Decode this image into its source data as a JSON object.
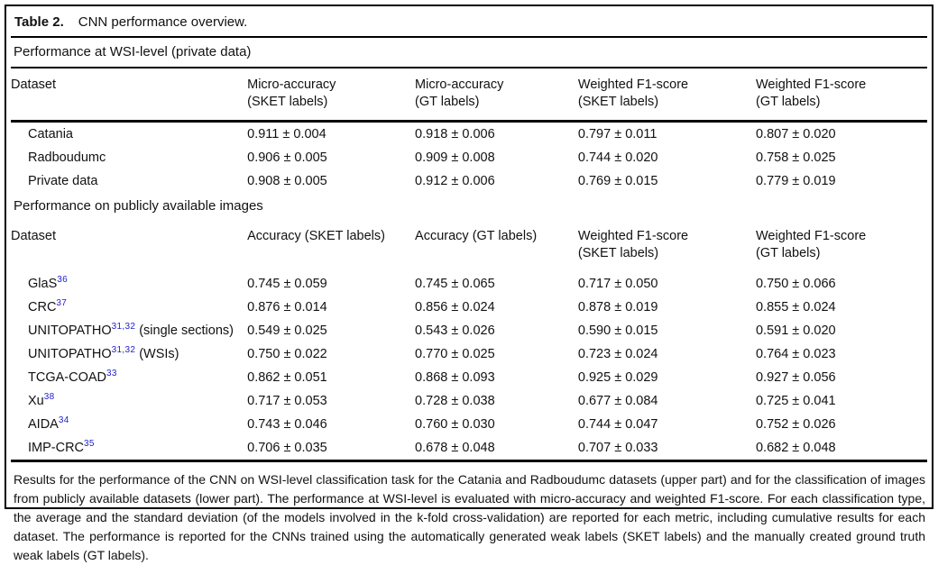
{
  "colors": {
    "reference_blue": "#2222cc",
    "border": "#000000",
    "text": "#111111"
  },
  "caption": {
    "number": "Table 2.",
    "title": "CNN performance overview."
  },
  "sections": [
    {
      "heading": "Performance at WSI-level (private data)",
      "columns": [
        {
          "line1": "Dataset",
          "line2": ""
        },
        {
          "line1": "Micro-accuracy",
          "line2": "(SKET labels)"
        },
        {
          "line1": "Micro-accuracy",
          "line2": "(GT labels)"
        },
        {
          "line1": "Weighted F1-score",
          "line2": "(SKET labels)"
        },
        {
          "line1": "Weighted F1-score",
          "line2": "(GT labels)"
        }
      ],
      "rows": [
        {
          "name": "Catania",
          "sup": "",
          "suffix": "",
          "values": [
            "0.911 ± 0.004",
            "0.918 ± 0.006",
            "0.797 ± 0.011",
            "0.807 ± 0.020"
          ]
        },
        {
          "name": "Radboudumc",
          "sup": "",
          "suffix": "",
          "values": [
            "0.906 ± 0.005",
            "0.909 ± 0.008",
            "0.744 ± 0.020",
            "0.758 ± 0.025"
          ]
        },
        {
          "name": "Private data",
          "sup": "",
          "suffix": "",
          "values": [
            "0.908 ± 0.005",
            "0.912 ± 0.006",
            "0.769 ± 0.015",
            "0.779 ± 0.019"
          ]
        }
      ]
    },
    {
      "heading": "Performance on publicly available images",
      "columns": [
        {
          "line1": "Dataset",
          "line2": ""
        },
        {
          "line1": "Accuracy (SKET labels)",
          "line2": ""
        },
        {
          "line1": "Accuracy (GT labels)",
          "line2": ""
        },
        {
          "line1": "Weighted F1-score",
          "line2": "(SKET labels)"
        },
        {
          "line1": "Weighted F1-score",
          "line2": "(GT labels)"
        }
      ],
      "rows": [
        {
          "name": "GlaS",
          "sup": "36",
          "suffix": "",
          "values": [
            "0.745 ± 0.059",
            "0.745 ± 0.065",
            "0.717 ± 0.050",
            "0.750 ± 0.066"
          ]
        },
        {
          "name": "CRC",
          "sup": "37",
          "suffix": "",
          "values": [
            "0.876 ± 0.014",
            "0.856 ± 0.024",
            "0.878 ± 0.019",
            "0.855 ± 0.024"
          ]
        },
        {
          "name": "UNITOPATHO",
          "sup": "31,32",
          "suffix": " (single sections)",
          "values": [
            "0.549 ± 0.025",
            "0.543 ± 0.026",
            "0.590 ± 0.015",
            "0.591 ± 0.020"
          ]
        },
        {
          "name": "UNITOPATHO",
          "sup": "31,32",
          "suffix": " (WSIs)",
          "values": [
            "0.750 ± 0.022",
            "0.770 ± 0.025",
            "0.723 ± 0.024",
            "0.764 ± 0.023"
          ]
        },
        {
          "name": "TCGA-COAD",
          "sup": "33",
          "suffix": "",
          "values": [
            "0.862 ± 0.051",
            "0.868 ± 0.093",
            "0.925 ± 0.029",
            "0.927 ± 0.056"
          ]
        },
        {
          "name": "Xu",
          "sup": "38",
          "suffix": "",
          "values": [
            "0.717 ± 0.053",
            "0.728 ± 0.038",
            "0.677 ± 0.084",
            "0.725 ± 0.041"
          ]
        },
        {
          "name": "AIDA",
          "sup": "34",
          "suffix": "",
          "values": [
            "0.743 ± 0.046",
            "0.760 ± 0.030",
            "0.744 ± 0.047",
            "0.752 ± 0.026"
          ]
        },
        {
          "name": "IMP-CRC",
          "sup": "35",
          "suffix": "",
          "values": [
            "0.706 ± 0.035",
            "0.678 ± 0.048",
            "0.707 ± 0.033",
            "0.682 ± 0.048"
          ]
        }
      ]
    }
  ],
  "footnote": "Results for the performance of the CNN on WSI-level classification task for the Catania and Radboudumc datasets (upper part) and for the classification of images from publicly available datasets (lower part). The performance at WSI-level is evaluated with micro-accuracy and weighted F1-score. For each classification type, the average and the standard deviation (of the models involved in the k-fold cross-validation) are reported for each metric, including cumulative results for each dataset. The performance is reported for the CNNs trained using the automatically generated weak labels (SKET labels) and the manually created ground truth weak labels (GT labels)."
}
